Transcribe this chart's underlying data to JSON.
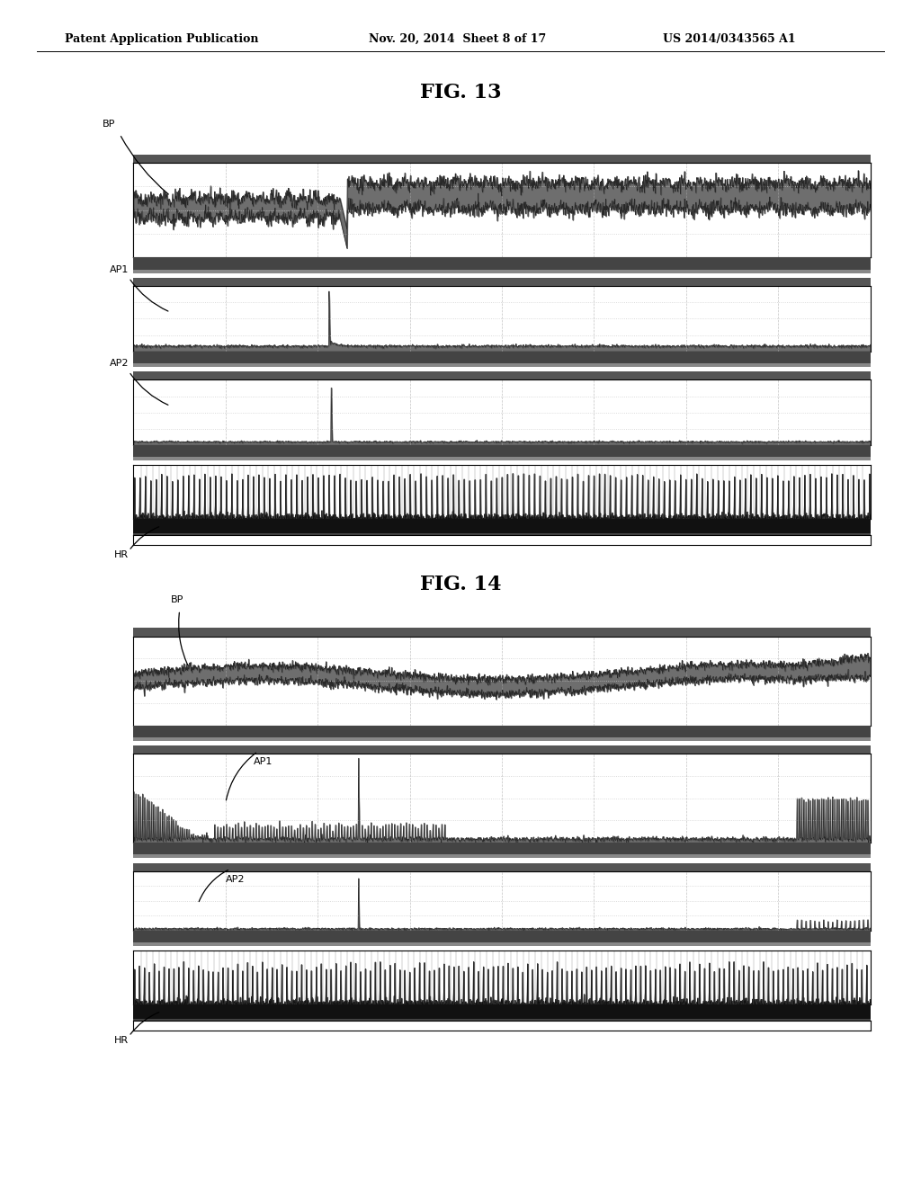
{
  "title_header": "Patent Application Publication",
  "date_header": "Nov. 20, 2014  Sheet 8 of 17",
  "patent_header": "US 2014/0343565 A1",
  "fig13_title": "FIG. 13",
  "fig14_title": "FIG. 14",
  "background_color": "#ffffff",
  "dark_bar_color": "#555555",
  "darker_bar_color": "#333333",
  "darkest_bar_color": "#111111",
  "signal_fill_color": "#555555",
  "signal_line_color": "#222222",
  "panel_bg": "#ffffff",
  "vgrid_color": "#aaaaaa",
  "hgrid_color": "#cccccc",
  "border_color": "#000000",
  "header_fontsize": 9,
  "fig_title_fontsize": 16,
  "label_fontsize": 8
}
